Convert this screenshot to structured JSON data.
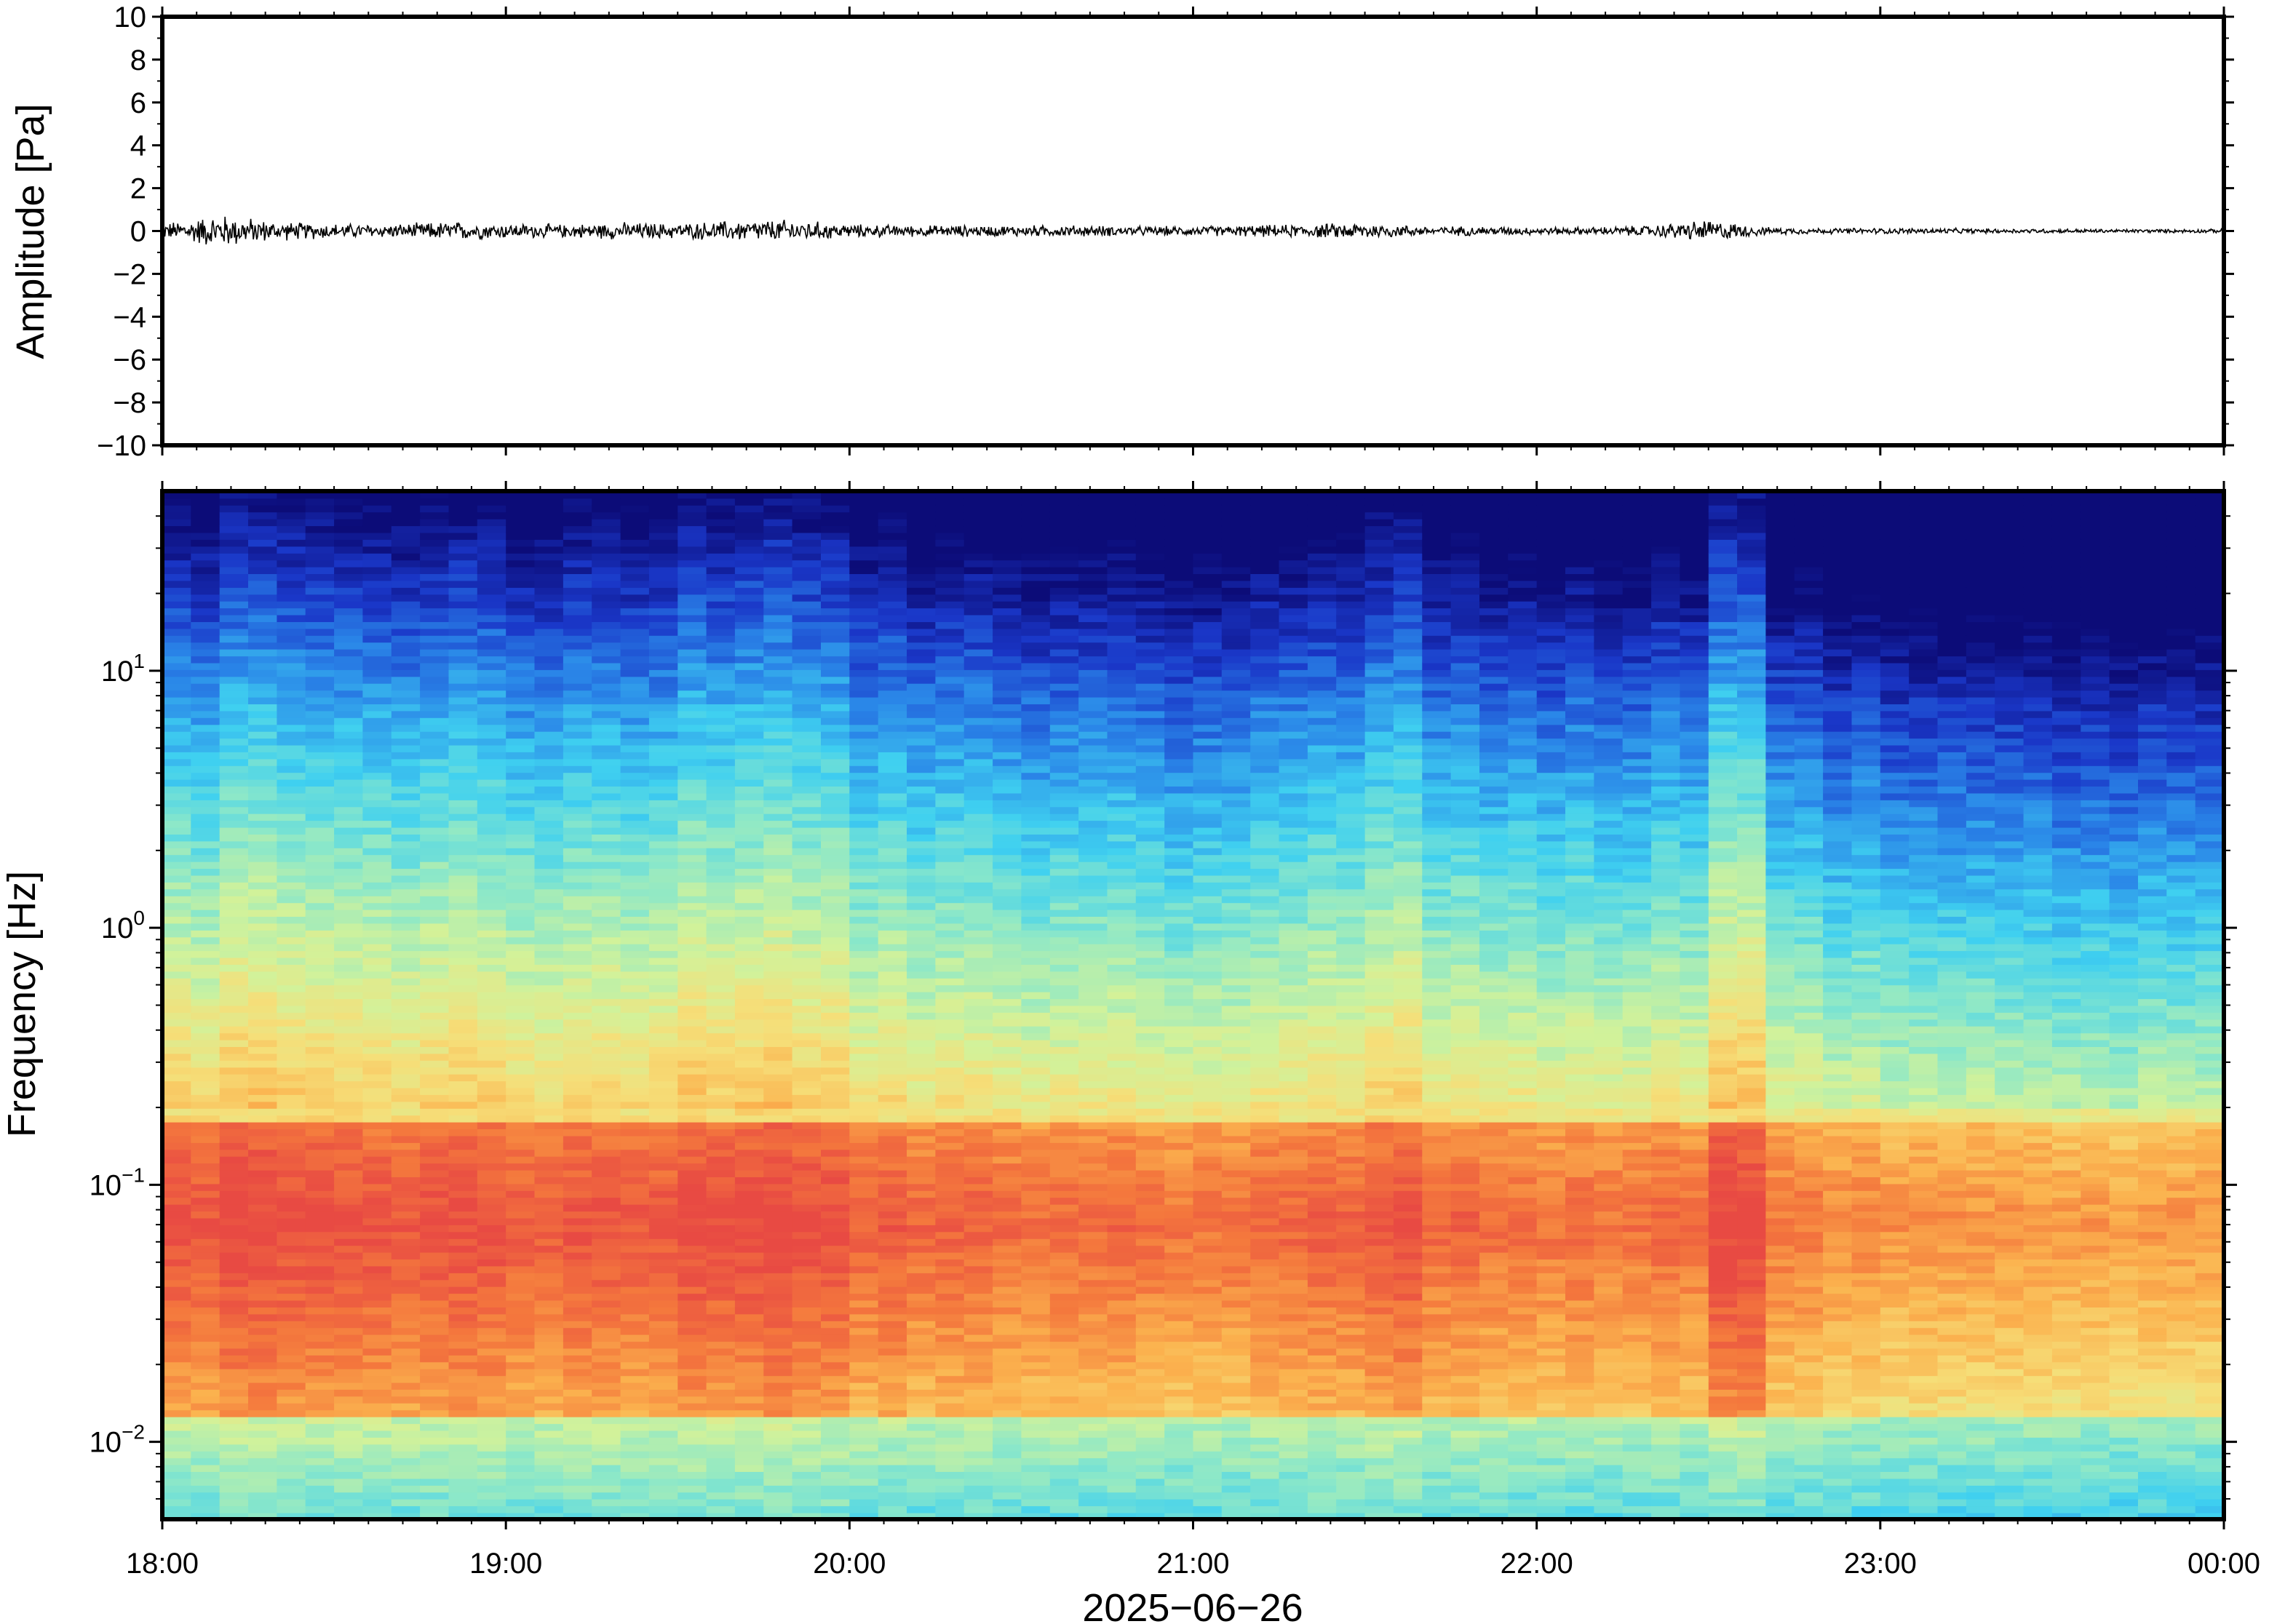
{
  "chart_data": [
    {
      "type": "line",
      "panel": "waveform",
      "ylabel": "Amplitude [Pa]",
      "ylim": [
        -10,
        10
      ],
      "yticks": [
        "10",
        "8",
        "6",
        "4",
        "2",
        "0",
        "−2",
        "−4",
        "−6",
        "−8",
        "−10"
      ],
      "ytick_values": [
        10,
        8,
        6,
        4,
        2,
        0,
        -2,
        -4,
        -6,
        -8,
        -10
      ],
      "x_range": [
        "2025-06-26 18:00",
        "2025-06-27 00:00"
      ],
      "envelope": {
        "times": [
          "18:00",
          "18:10",
          "18:20",
          "18:30",
          "18:40",
          "18:50",
          "19:00",
          "19:10",
          "19:20",
          "19:30",
          "19:40",
          "19:50",
          "20:00",
          "20:10",
          "20:20",
          "20:30",
          "20:40",
          "20:50",
          "21:00",
          "21:10",
          "21:20",
          "21:30",
          "21:40",
          "21:50",
          "22:00",
          "22:10",
          "22:20",
          "22:30",
          "22:40",
          "22:50",
          "23:00",
          "23:10",
          "23:20",
          "23:30",
          "23:40",
          "23:50",
          "00:00"
        ],
        "amplitude_pa": [
          0.4,
          0.9,
          0.5,
          0.4,
          0.35,
          0.5,
          0.4,
          0.35,
          0.45,
          0.4,
          0.55,
          0.6,
          0.35,
          0.3,
          0.3,
          0.3,
          0.3,
          0.25,
          0.25,
          0.3,
          0.35,
          0.45,
          0.25,
          0.25,
          0.2,
          0.2,
          0.3,
          0.6,
          0.2,
          0.15,
          0.15,
          0.15,
          0.12,
          0.12,
          0.1,
          0.1,
          0.1
        ]
      }
    },
    {
      "type": "heatmap",
      "panel": "spectrogram",
      "ylabel": "Frequency [Hz]",
      "yscale": "log",
      "ylim": [
        0.005,
        50
      ],
      "yticks": [
        {
          "value": 10,
          "base": "10",
          "exp": "1"
        },
        {
          "value": 1,
          "base": "10",
          "exp": "0"
        },
        {
          "value": 0.1,
          "base": "10",
          "exp": "−1"
        },
        {
          "value": 0.01,
          "base": "10",
          "exp": "−2"
        }
      ],
      "xlabel": "2025−06−26",
      "xticks": [
        "18:00",
        "19:00",
        "20:00",
        "21:00",
        "22:00",
        "23:00",
        "00:00"
      ],
      "colormap": "jet",
      "colormap_stops": [
        "#0c0c78",
        "#1a37c8",
        "#2a86e8",
        "#3fd0f0",
        "#8de8c8",
        "#d2f29a",
        "#f6de78",
        "#fbb24e",
        "#f4783d",
        "#e84a43"
      ],
      "time_profile": [
        0.8,
        0.9,
        0.82,
        0.78,
        0.8,
        0.82,
        0.74,
        0.8,
        0.78,
        0.86,
        0.9,
        0.85,
        0.7,
        0.66,
        0.64,
        0.6,
        0.6,
        0.55,
        0.56,
        0.62,
        0.7,
        0.8,
        0.62,
        0.58,
        0.55,
        0.5,
        0.6,
        0.9,
        0.52,
        0.4,
        0.32,
        0.3,
        0.32,
        0.3,
        0.28,
        0.26
      ]
    }
  ]
}
